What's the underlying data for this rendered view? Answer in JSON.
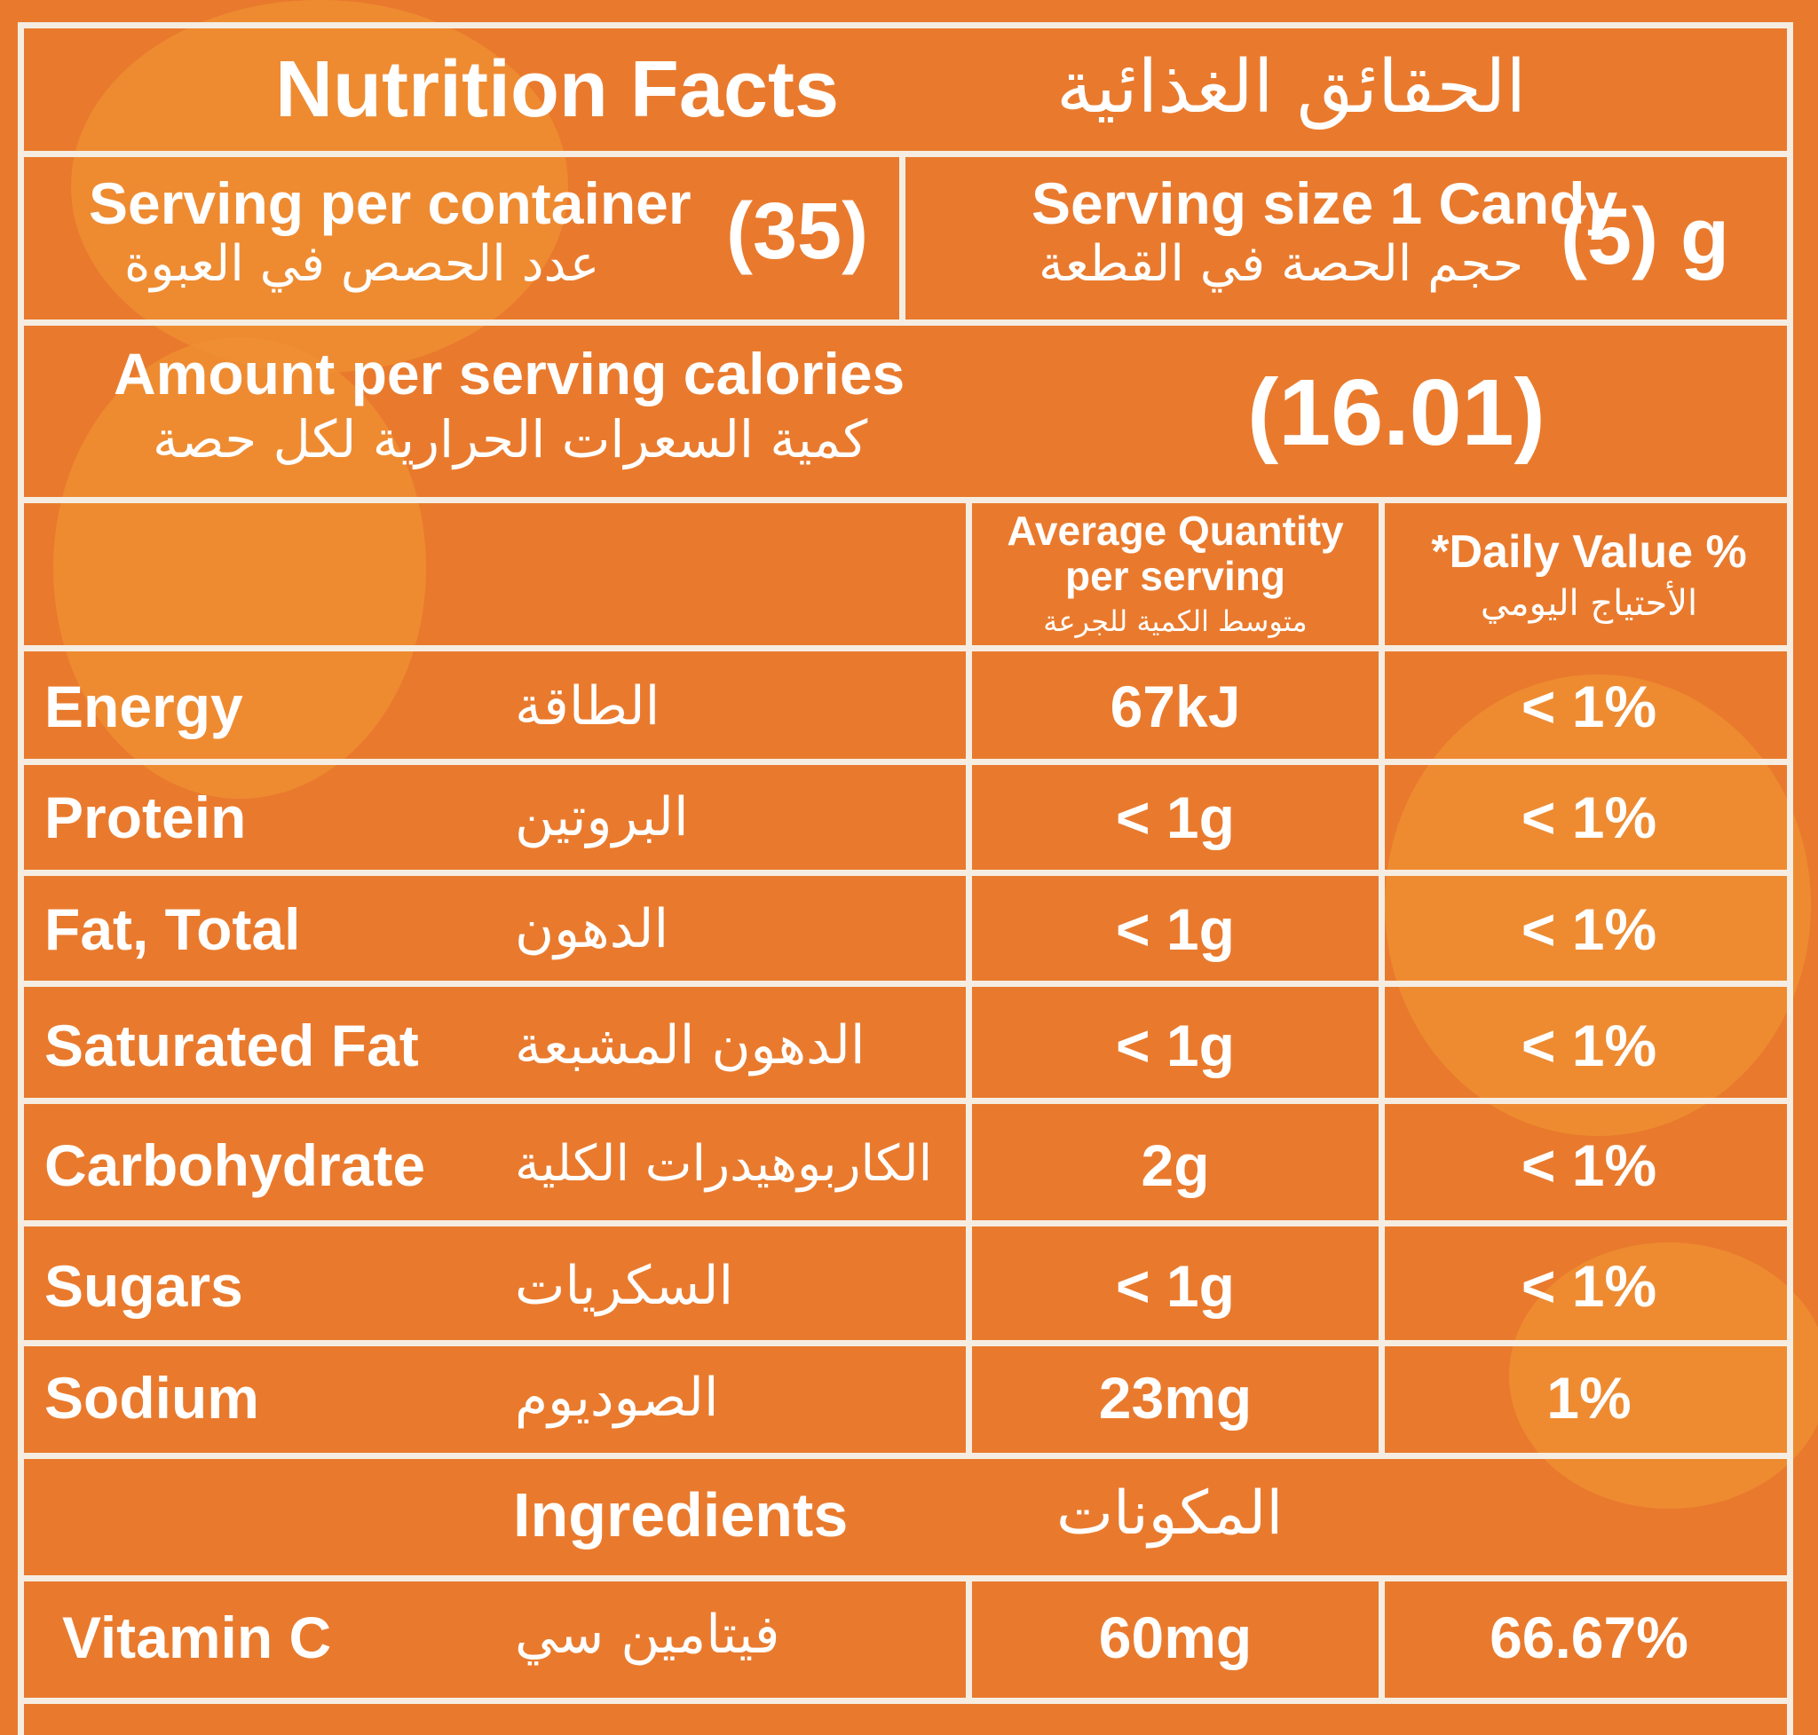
{
  "header": {
    "title_en": "Nutrition Facts",
    "title_ar": "الحقائق الغذائية"
  },
  "serving_container": {
    "label_en": "Serving per container",
    "label_ar": "عدد الحصص في العبوة",
    "value": "(35)"
  },
  "serving_size": {
    "label_en": "Serving size 1 Candy",
    "label_ar": "حجم الحصة في القطعة",
    "value": "(5) g"
  },
  "calories": {
    "label_en": "Amount per serving calories",
    "label_ar": "كمية السعرات الحرارية لكل حصة",
    "value": "(16.01)"
  },
  "columns": {
    "avg_line1": "Average Quantity",
    "avg_line2": "per serving",
    "avg_ar": "متوسط الكمية للجرعة",
    "dv_en": "*Daily Value %",
    "dv_ar": "الأحتياج اليومي"
  },
  "rows": [
    {
      "en": "Energy",
      "ar": "الطاقة",
      "qty": "67kJ",
      "dv": "< 1%"
    },
    {
      "en": "Protein",
      "ar": "البروتين",
      "qty": "< 1g",
      "dv": "< 1%"
    },
    {
      "en": "Fat, Total",
      "ar": "الدهون",
      "qty": "< 1g",
      "dv": "< 1%"
    },
    {
      "en": "Saturated Fat",
      "ar": "الدهون المشبعة",
      "qty": "< 1g",
      "dv": "< 1%"
    },
    {
      "en": "Carbohydrate",
      "ar": "الكاربوهيدرات الكلية",
      "qty": "2g",
      "dv": "< 1%"
    },
    {
      "en": "Sugars",
      "ar": "السكريات",
      "qty": "< 1g",
      "dv": "< 1%"
    },
    {
      "en": "Sodium",
      "ar": "الصوديوم",
      "qty": "23mg",
      "dv": "1%"
    }
  ],
  "ingredients": {
    "label_en": "Ingredients",
    "label_ar": "المكونات"
  },
  "vitamin": {
    "en": "Vitamin C",
    "ar": "فيتامين سي",
    "qty": "60mg",
    "dv": "66.67%"
  }
}
